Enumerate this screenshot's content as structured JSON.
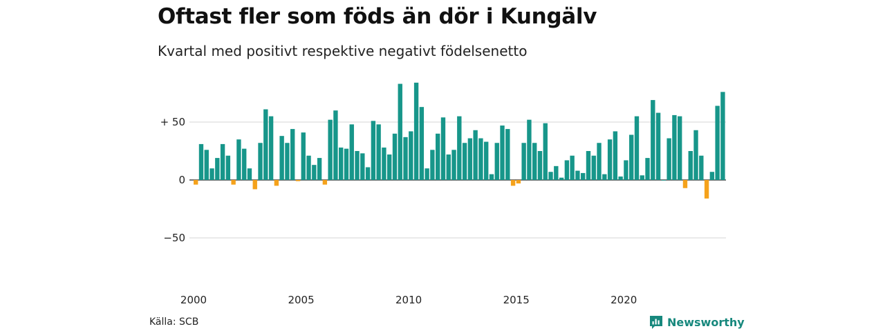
{
  "title": "Oftast fler som föds än dör i Kungälv",
  "subtitle": "Kvartal med positivt respektive negativt födelsenetto",
  "source": "Källa: SCB",
  "brand": "Newsworthy",
  "colors": {
    "positive": "#17968a",
    "negative": "#f5a21b",
    "brand": "#17887d"
  },
  "chart_data": {
    "type": "bar",
    "title": "Oftast fler som föds än dör i Kungälv",
    "subtitle": "Kvartal med positivt respektive negativt födelsenetto",
    "xlabel": "",
    "ylabel": "",
    "ylim": [
      -60,
      85
    ],
    "yticks": [
      {
        "value": 50,
        "label": "+ 50"
      },
      {
        "value": 0,
        "label": "0"
      },
      {
        "value": -50,
        "label": "−50"
      }
    ],
    "xticks": [
      "2000",
      "2005",
      "2010",
      "2015",
      "2020"
    ],
    "x_start_year": 2000,
    "grid": true,
    "values": [
      -4,
      31,
      26,
      10,
      19,
      31,
      21,
      -4,
      35,
      27,
      10,
      -8,
      32,
      61,
      55,
      -5,
      38,
      32,
      44,
      -1,
      41,
      21,
      13,
      19,
      -4,
      52,
      60,
      28,
      27,
      48,
      25,
      23,
      11,
      51,
      48,
      28,
      22,
      40,
      83,
      37,
      42,
      84,
      63,
      10,
      26,
      40,
      54,
      22,
      26,
      55,
      32,
      36,
      43,
      36,
      33,
      5,
      32,
      47,
      44,
      -5,
      -3,
      32,
      52,
      32,
      25,
      49,
      7,
      12,
      2,
      17,
      21,
      8,
      6,
      25,
      21,
      32,
      5,
      35,
      42,
      3,
      17,
      39,
      55,
      4,
      19,
      69,
      58,
      0,
      36,
      56,
      55,
      -7,
      25,
      43,
      21,
      -16,
      7,
      64,
      76
    ]
  }
}
